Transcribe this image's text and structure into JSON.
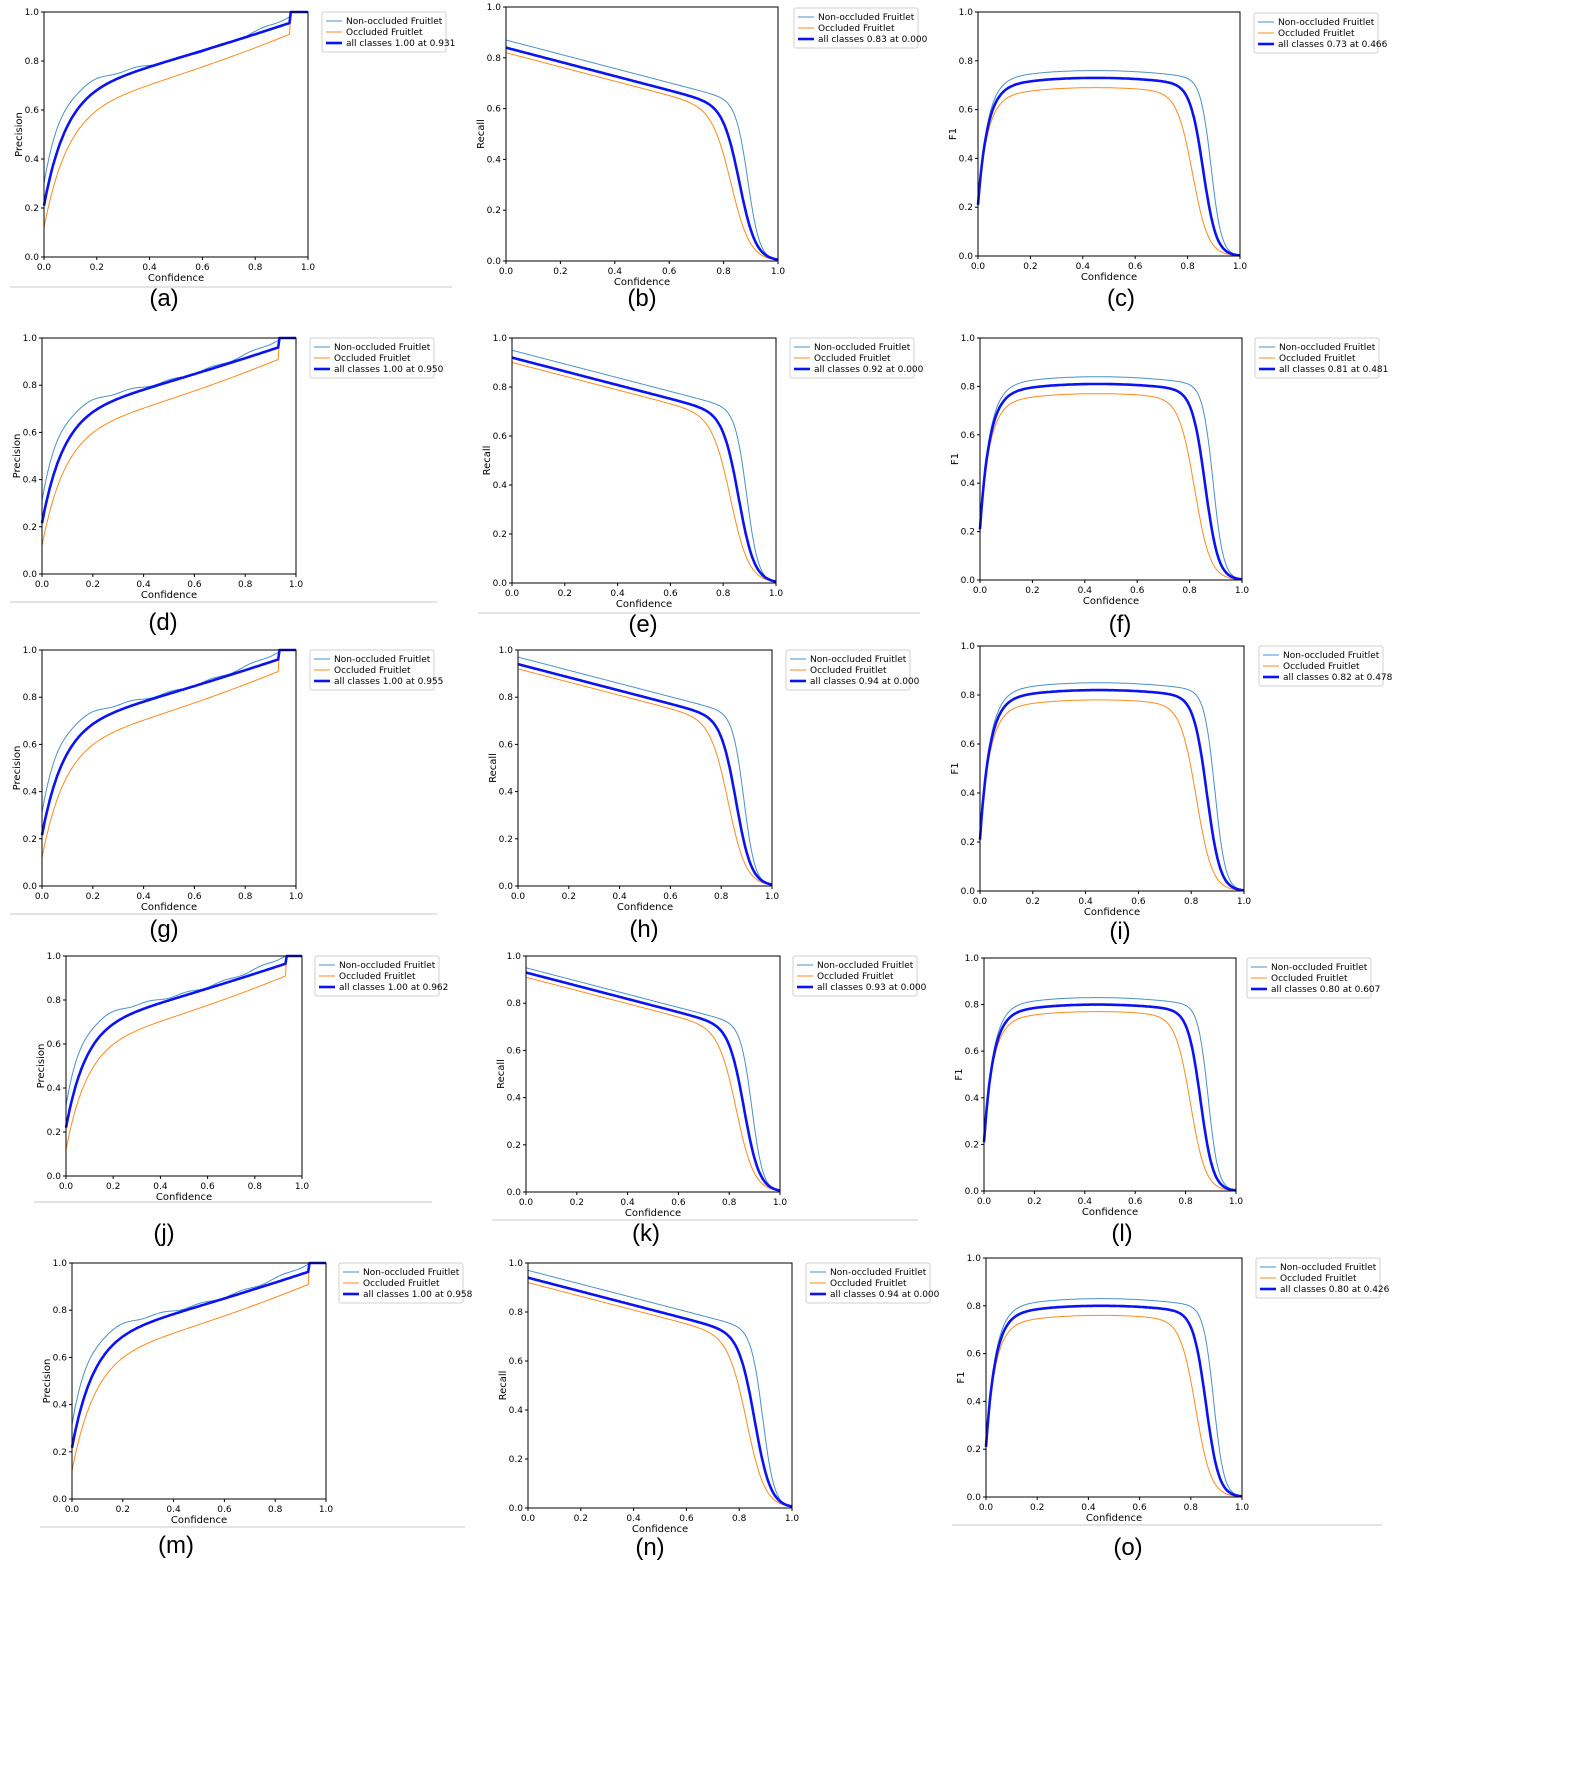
{
  "colors": {
    "non_occluded": "#4a90c8",
    "occluded": "#ff8a1f",
    "all_classes": "#0b14f0",
    "frame": "#000000",
    "separator": "#c8c8c8"
  },
  "chart_data": [
    {
      "label": "(a)",
      "type": "line",
      "metric": "precision",
      "xlabel": "Confidence",
      "ylabel": "Precision",
      "xlim": [
        0,
        1
      ],
      "ylim": [
        0,
        1
      ],
      "xticks": [
        "0.0",
        "0.2",
        "0.4",
        "0.6",
        "0.8",
        "1.0"
      ],
      "yticks": [
        "0.0",
        "0.2",
        "0.4",
        "0.6",
        "0.8",
        "1.0"
      ],
      "legend_position": "top-right-outside",
      "series": [
        {
          "name": "Non-occluded Fruitlet"
        },
        {
          "name": "Occluded Fruitlet"
        },
        {
          "name": "all classes 1.00 at 0.931"
        }
      ]
    },
    {
      "label": "(b)",
      "type": "line",
      "metric": "recall",
      "xlabel": "Confidence",
      "ylabel": "Recall",
      "xlim": [
        0,
        1
      ],
      "ylim": [
        0,
        1
      ],
      "xticks": [
        "0.0",
        "0.2",
        "0.4",
        "0.6",
        "0.8",
        "1.0"
      ],
      "yticks": [
        "0.0",
        "0.2",
        "0.4",
        "0.6",
        "0.8",
        "1.0"
      ],
      "legend_position": "top-right",
      "series": [
        {
          "name": "Non-occluded Fruitlet"
        },
        {
          "name": "Occluded Fruitlet"
        },
        {
          "name": "all classes 0.83 at 0.000"
        }
      ]
    },
    {
      "label": "(c)",
      "type": "line",
      "metric": "f1",
      "xlabel": "Confidence",
      "ylabel": "F1",
      "xlim": [
        0,
        1
      ],
      "ylim": [
        0,
        1
      ],
      "xticks": [
        "0.0",
        "0.2",
        "0.4",
        "0.6",
        "0.8",
        "1.0"
      ],
      "yticks": [
        "0.0",
        "0.2",
        "0.4",
        "0.6",
        "0.8",
        "1.0"
      ],
      "legend_position": "top-right-outside",
      "series": [
        {
          "name": "Non-occluded Fruitlet"
        },
        {
          "name": "Occluded Fruitlet"
        },
        {
          "name": "all classes 0.73 at 0.466"
        }
      ]
    },
    {
      "label": "(d)",
      "type": "line",
      "metric": "precision",
      "xlabel": "Confidence",
      "ylabel": "Precision",
      "xlim": [
        0,
        1
      ],
      "ylim": [
        0,
        1
      ],
      "xticks": [
        "0.0",
        "0.2",
        "0.4",
        "0.6",
        "0.8",
        "1.0"
      ],
      "yticks": [
        "0.0",
        "0.2",
        "0.4",
        "0.6",
        "0.8",
        "1.0"
      ],
      "legend_position": "top-right-outside",
      "series": [
        {
          "name": "Non-occluded Fruitlet"
        },
        {
          "name": "Occluded Fruitlet"
        },
        {
          "name": "all classes 1.00 at 0.950"
        }
      ]
    },
    {
      "label": "(e)",
      "type": "line",
      "metric": "recall",
      "xlabel": "Confidence",
      "ylabel": "Recall",
      "xlim": [
        0,
        1
      ],
      "ylim": [
        0,
        1
      ],
      "xticks": [
        "0.0",
        "0.2",
        "0.4",
        "0.6",
        "0.8",
        "1.0"
      ],
      "yticks": [
        "0.0",
        "0.2",
        "0.4",
        "0.6",
        "0.8",
        "1.0"
      ],
      "legend_position": "top-right",
      "series": [
        {
          "name": "Non-occluded Fruitlet"
        },
        {
          "name": "Occluded Fruitlet"
        },
        {
          "name": "all classes 0.92 at 0.000"
        }
      ]
    },
    {
      "label": "(f)",
      "type": "line",
      "metric": "f1",
      "xlabel": "Confidence",
      "ylabel": "F1",
      "xlim": [
        0,
        1
      ],
      "ylim": [
        0,
        1
      ],
      "xticks": [
        "0.0",
        "0.2",
        "0.4",
        "0.6",
        "0.8",
        "1.0"
      ],
      "yticks": [
        "0.0",
        "0.2",
        "0.4",
        "0.6",
        "0.8",
        "1.0"
      ],
      "legend_position": "top-right-outside",
      "series": [
        {
          "name": "Non-occluded Fruitlet"
        },
        {
          "name": "Occluded Fruitlet"
        },
        {
          "name": "all classes 0.81 at 0.481"
        }
      ]
    },
    {
      "label": "(g)",
      "type": "line",
      "metric": "precision",
      "xlabel": "Confidence",
      "ylabel": "Precision",
      "xlim": [
        0,
        1
      ],
      "ylim": [
        0,
        1
      ],
      "xticks": [
        "0.0",
        "0.2",
        "0.4",
        "0.6",
        "0.8",
        "1.0"
      ],
      "yticks": [
        "0.0",
        "0.2",
        "0.4",
        "0.6",
        "0.8",
        "1.0"
      ],
      "legend_position": "top-right-outside",
      "series": [
        {
          "name": "Non-occluded Fruitlet"
        },
        {
          "name": "Occluded Fruitlet"
        },
        {
          "name": "all classes 1.00 at 0.955"
        }
      ]
    },
    {
      "label": "(h)",
      "type": "line",
      "metric": "recall",
      "xlabel": "Confidence",
      "ylabel": "Recall",
      "xlim": [
        0,
        1
      ],
      "ylim": [
        0,
        1
      ],
      "xticks": [
        "0.0",
        "0.2",
        "0.4",
        "0.6",
        "0.8",
        "1.0"
      ],
      "yticks": [
        "0.0",
        "0.2",
        "0.4",
        "0.6",
        "0.8",
        "1.0"
      ],
      "legend_position": "top-right",
      "series": [
        {
          "name": "Non-occluded Fruitlet"
        },
        {
          "name": "Occluded Fruitlet"
        },
        {
          "name": "all classes 0.94 at 0.000"
        }
      ]
    },
    {
      "label": "(i)",
      "type": "line",
      "metric": "f1",
      "xlabel": "Confidence",
      "ylabel": "F1",
      "xlim": [
        0,
        1
      ],
      "ylim": [
        0,
        1
      ],
      "xticks": [
        "0.0",
        "0.2",
        "0.4",
        "0.6",
        "0.8",
        "1.0"
      ],
      "yticks": [
        "0.0",
        "0.2",
        "0.4",
        "0.6",
        "0.8",
        "1.0"
      ],
      "legend_position": "top-right-outside",
      "series": [
        {
          "name": "Non-occluded Fruitlet"
        },
        {
          "name": "Occluded Fruitlet"
        },
        {
          "name": "all classes 0.82 at 0.478"
        }
      ]
    },
    {
      "label": "(j)",
      "type": "line",
      "metric": "precision",
      "xlabel": "Confidence",
      "ylabel": "Precision",
      "xlim": [
        0,
        1
      ],
      "ylim": [
        0,
        1
      ],
      "xticks": [
        "0.0",
        "0.2",
        "0.4",
        "0.6",
        "0.8",
        "1.0"
      ],
      "yticks": [
        "0.0",
        "0.2",
        "0.4",
        "0.6",
        "0.8",
        "1.0"
      ],
      "legend_position": "top-right-outside",
      "series": [
        {
          "name": "Non-occluded Fruitlet"
        },
        {
          "name": "Occluded Fruitlet"
        },
        {
          "name": "all classes 1.00 at 0.962"
        }
      ]
    },
    {
      "label": "(k)",
      "type": "line",
      "metric": "recall",
      "xlabel": "Confidence",
      "ylabel": "Recall",
      "xlim": [
        0,
        1
      ],
      "ylim": [
        0,
        1
      ],
      "xticks": [
        "0.0",
        "0.2",
        "0.4",
        "0.6",
        "0.8",
        "1.0"
      ],
      "yticks": [
        "0.0",
        "0.2",
        "0.4",
        "0.6",
        "0.8",
        "1.0"
      ],
      "legend_position": "top-right",
      "series": [
        {
          "name": "Non-occluded Fruitlet"
        },
        {
          "name": "Occluded Fruitlet"
        },
        {
          "name": "all classes 0.93 at 0.000"
        }
      ]
    },
    {
      "label": "(l)",
      "type": "line",
      "metric": "f1",
      "xlabel": "Confidence",
      "ylabel": "F1",
      "xlim": [
        0,
        1
      ],
      "ylim": [
        0,
        1
      ],
      "xticks": [
        "0.0",
        "0.2",
        "0.4",
        "0.6",
        "0.8",
        "1.0"
      ],
      "yticks": [
        "0.0",
        "0.2",
        "0.4",
        "0.6",
        "0.8",
        "1.0"
      ],
      "legend_position": "top-right-outside",
      "series": [
        {
          "name": "Non-occluded Fruitlet"
        },
        {
          "name": "Occluded Fruitlet"
        },
        {
          "name": "all classes 0.80 at 0.607"
        }
      ]
    },
    {
      "label": "(m)",
      "type": "line",
      "metric": "precision",
      "xlabel": "Confidence",
      "ylabel": "Precision",
      "xlim": [
        0,
        1
      ],
      "ylim": [
        0,
        1
      ],
      "xticks": [
        "0.0",
        "0.2",
        "0.4",
        "0.6",
        "0.8",
        "1.0"
      ],
      "yticks": [
        "0.0",
        "0.2",
        "0.4",
        "0.6",
        "0.8",
        "1.0"
      ],
      "legend_position": "top-right-outside",
      "series": [
        {
          "name": "Non-occluded Fruitlet"
        },
        {
          "name": "Occluded Fruitlet"
        },
        {
          "name": "all classes 1.00 at 0.958"
        }
      ]
    },
    {
      "label": "(n)",
      "type": "line",
      "metric": "recall",
      "xlabel": "Confidence",
      "ylabel": "Recall",
      "xlim": [
        0,
        1
      ],
      "ylim": [
        0,
        1
      ],
      "xticks": [
        "0.0",
        "0.2",
        "0.4",
        "0.6",
        "0.8",
        "1.0"
      ],
      "yticks": [
        "0.0",
        "0.2",
        "0.4",
        "0.6",
        "0.8",
        "1.0"
      ],
      "legend_position": "top-right",
      "series": [
        {
          "name": "Non-occluded Fruitlet"
        },
        {
          "name": "Occluded Fruitlet"
        },
        {
          "name": "all classes 0.94 at 0.000"
        }
      ]
    },
    {
      "label": "(o)",
      "type": "line",
      "metric": "f1",
      "xlabel": "Confidence",
      "ylabel": "F1",
      "xlim": [
        0,
        1
      ],
      "ylim": [
        0,
        1
      ],
      "xticks": [
        "0.0",
        "0.2",
        "0.4",
        "0.6",
        "0.8",
        "1.0"
      ],
      "yticks": [
        "0.0",
        "0.2",
        "0.4",
        "0.6",
        "0.8",
        "1.0"
      ],
      "legend_position": "top-right-outside",
      "series": [
        {
          "name": "Non-occluded Fruitlet"
        },
        {
          "name": "Occluded Fruitlet"
        },
        {
          "name": "all classes 0.80 at 0.426"
        }
      ]
    }
  ]
}
